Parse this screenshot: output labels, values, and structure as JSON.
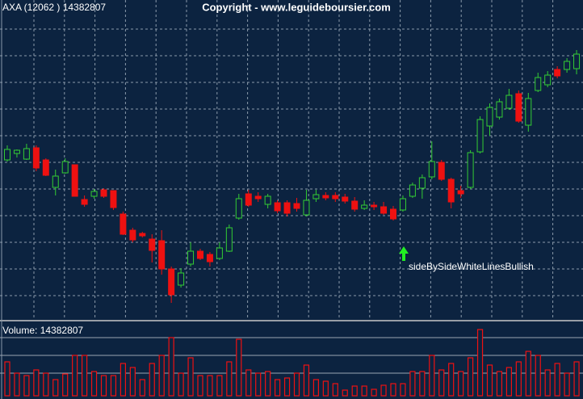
{
  "copyright": "Copyright - www.leguideboursier.com",
  "chart_data": [
    {
      "type": "candlestick",
      "title": "AXA (12062 ) 14382807",
      "annotation": "sideBySideWhiteLinesBullish",
      "up_color": "#33cc33",
      "down_color": "#ee1111",
      "ylim": [
        0,
        395
      ],
      "yticks": [
        29,
        62,
        95,
        128,
        161,
        194,
        227,
        260,
        293,
        326,
        359
      ],
      "grid": true,
      "open": [
        197,
        205,
        198,
        212,
        197,
        163,
        181,
        191,
        148,
        152,
        160,
        159,
        130,
        110,
        106,
        99,
        97,
        62,
        42,
        68,
        84,
        80,
        75,
        84,
        125,
        155,
        152,
        142,
        144,
        144,
        143,
        129,
        149,
        153,
        153,
        151,
        146,
        137,
        141,
        139,
        136,
        135,
        152,
        162,
        176,
        194,
        173,
        159,
        163,
        207,
        239,
        250,
        261,
        279,
        240,
        283,
        290,
        309,
        309,
        310
      ],
      "high": [
        215,
        210,
        217,
        215,
        199,
        185,
        199,
        191,
        153,
        161,
        162,
        159,
        133,
        113,
        108,
        105,
        110,
        65,
        63,
        95,
        87,
        83,
        95,
        117,
        155,
        160,
        157,
        155,
        147,
        147,
        150,
        160,
        160,
        157,
        157,
        155,
        151,
        147,
        145,
        145,
        140,
        153,
        169,
        179,
        220,
        197,
        175,
        165,
        209,
        251,
        267,
        273,
        285,
        283,
        280,
        305,
        307,
        313,
        323,
        333
      ],
      "low": [
        195,
        200,
        197,
        183,
        177,
        153,
        180,
        152,
        139,
        149,
        150,
        135,
        104,
        95,
        101,
        70,
        55,
        20,
        39,
        65,
        73,
        65,
        73,
        83,
        123,
        139,
        145,
        137,
        131,
        127,
        133,
        127,
        145,
        147,
        145,
        143,
        133,
        135,
        135,
        129,
        122,
        133,
        150,
        149,
        173,
        171,
        137,
        150,
        161,
        205,
        227,
        247,
        259,
        243,
        232,
        281,
        287,
        298,
        305,
        303
      ],
      "close": [
        210,
        209,
        211,
        187,
        178,
        177,
        195,
        152,
        142,
        158,
        152,
        138,
        105,
        98,
        103,
        85,
        62,
        30,
        57,
        84,
        75,
        71,
        88,
        113,
        149,
        141,
        149,
        152,
        134,
        131,
        137,
        147,
        154,
        150,
        149,
        146,
        136,
        141,
        139,
        131,
        124,
        149,
        166,
        175,
        195,
        173,
        145,
        155,
        206,
        247,
        262,
        269,
        277,
        245,
        273,
        299,
        302,
        301,
        319,
        328
      ]
    },
    {
      "type": "bar",
      "title": "Volume: 14382807",
      "color": "#ee1111",
      "ylim": [
        0,
        90
      ],
      "yticks": [
        28,
        50,
        72
      ],
      "grid": true,
      "values": [
        42,
        28,
        25,
        32,
        28,
        20,
        27,
        50,
        50,
        30,
        25,
        25,
        40,
        35,
        20,
        40,
        50,
        72,
        28,
        47,
        25,
        25,
        25,
        42,
        70,
        32,
        28,
        30,
        20,
        22,
        28,
        38,
        20,
        18,
        15,
        7,
        12,
        12,
        8,
        13,
        15,
        15,
        30,
        30,
        50,
        32,
        40,
        30,
        47,
        82,
        38,
        30,
        35,
        42,
        55,
        50,
        32,
        40,
        28,
        42
      ]
    }
  ]
}
